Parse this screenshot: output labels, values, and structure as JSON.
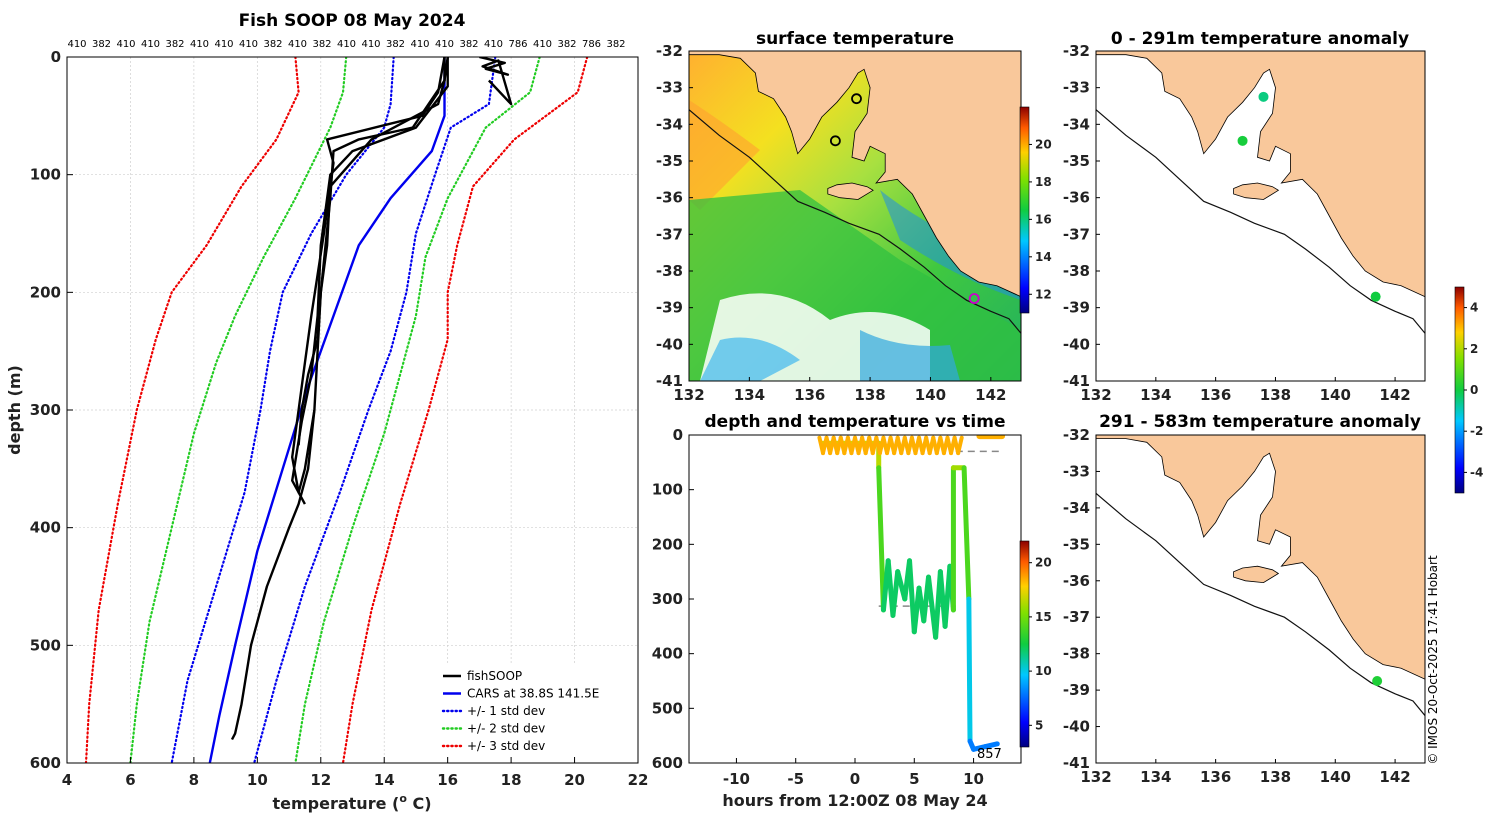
{
  "chart_data": [
    {
      "type": "line",
      "title": "Fish SOOP 08 May 2024",
      "xlabel_main": "temperature (",
      "xlabel_sup": "o",
      "xlabel_end": " C)",
      "ylabel": "depth (m)",
      "xlim": [
        4,
        22
      ],
      "ylim": [
        600,
        0
      ],
      "xticks": [
        4,
        6,
        8,
        10,
        12,
        14,
        16,
        18,
        20,
        22
      ],
      "yticks": [
        0,
        100,
        200,
        300,
        400,
        500,
        600
      ],
      "top_labels": [
        "410",
        "382",
        "410",
        "410",
        "382",
        "410",
        "410",
        "410",
        "382",
        "410",
        "382",
        "410",
        "410",
        "382",
        "410",
        "410",
        "382",
        "410",
        "786",
        "410",
        "382",
        "786",
        "382"
      ],
      "legend": [
        {
          "label": "fishSOOP",
          "color": "#000000",
          "style": "solid"
        },
        {
          "label": "CARS at 38.8S 141.5E",
          "color": "#0000ee",
          "style": "solid"
        },
        {
          "label": "+/- 1 std dev",
          "color": "#0000ee",
          "style": "dotted"
        },
        {
          "label": "+/- 2 std dev",
          "color": "#22cc22",
          "style": "dotted"
        },
        {
          "label": "+/- 3 std dev",
          "color": "#ee0000",
          "style": "dotted"
        }
      ],
      "series": [
        {
          "name": "CARS mean",
          "color": "#0000ee",
          "style": "solid",
          "x": [
            15.9,
            15.9,
            15.5,
            14.2,
            13.2,
            12.4,
            11.6,
            10.8,
            10.0,
            9.3,
            8.8,
            8.5
          ],
          "y": [
            0,
            50,
            80,
            120,
            160,
            220,
            280,
            350,
            420,
            500,
            560,
            600
          ]
        },
        {
          "name": "+1 std",
          "color": "#0000ee",
          "style": "dotted",
          "x": [
            17.5,
            17.3,
            16.1,
            15.6,
            15.0,
            14.7,
            14.2,
            13.5,
            12.6,
            11.5,
            10.6,
            9.9
          ],
          "y": [
            0,
            40,
            60,
            100,
            150,
            200,
            250,
            300,
            370,
            450,
            530,
            600
          ]
        },
        {
          "name": "-1 std",
          "color": "#0000ee",
          "style": "dotted",
          "x": [
            14.3,
            14.2,
            14.0,
            12.8,
            11.7,
            10.8,
            10.4,
            10.1,
            9.6,
            8.7,
            7.8,
            7.3
          ],
          "y": [
            0,
            40,
            60,
            100,
            150,
            200,
            250,
            300,
            370,
            450,
            530,
            600
          ]
        },
        {
          "name": "+2 std",
          "color": "#22cc22",
          "style": "dotted",
          "x": [
            18.9,
            18.6,
            17.2,
            16.0,
            15.3,
            15.0,
            14.6,
            14.0,
            13.0,
            12.1,
            11.5,
            11.2
          ],
          "y": [
            0,
            30,
            60,
            120,
            170,
            220,
            260,
            320,
            400,
            480,
            550,
            600
          ]
        },
        {
          "name": "-2 std",
          "color": "#22cc22",
          "style": "dotted",
          "x": [
            12.8,
            12.7,
            12.3,
            11.2,
            10.2,
            9.3,
            8.7,
            8.0,
            7.3,
            6.6,
            6.2,
            6.0
          ],
          "y": [
            0,
            30,
            60,
            120,
            170,
            220,
            260,
            320,
            400,
            480,
            550,
            600
          ]
        },
        {
          "name": "+3 std",
          "color": "#ee0000",
          "style": "dotted",
          "x": [
            20.4,
            20.1,
            18.1,
            16.8,
            16.3,
            16.0,
            16.0,
            15.4,
            14.5,
            13.6,
            13.0,
            12.7
          ],
          "y": [
            0,
            30,
            70,
            110,
            160,
            200,
            240,
            300,
            380,
            470,
            550,
            600
          ]
        },
        {
          "name": "-3 std",
          "color": "#ee0000",
          "style": "dotted",
          "x": [
            11.2,
            11.3,
            10.6,
            9.5,
            8.4,
            7.3,
            6.8,
            6.2,
            5.6,
            5.0,
            4.7,
            4.6
          ],
          "y": [
            0,
            30,
            70,
            110,
            160,
            200,
            240,
            300,
            380,
            470,
            550,
            600
          ]
        },
        {
          "name": "fishSOOP profile 1",
          "color": "#000000",
          "style": "solid",
          "x": [
            15.9,
            15.9,
            15.4,
            14.9,
            13.2,
            12.4,
            12.3,
            12.0,
            11.9,
            11.8,
            11.6,
            11.3,
            11.0,
            10.3,
            9.8,
            9.5,
            9.3,
            9.2
          ],
          "y": [
            0,
            20,
            40,
            60,
            70,
            80,
            120,
            200,
            250,
            300,
            350,
            380,
            400,
            450,
            500,
            550,
            575,
            580
          ]
        },
        {
          "name": "fishSOOP profile 2",
          "color": "#000000",
          "style": "solid",
          "x": [
            15.9,
            15.7,
            15.2,
            12.2,
            12.4,
            12.1,
            11.7,
            11.5,
            11.3,
            11.1,
            11.3,
            11.5,
            11.8
          ],
          "y": [
            0,
            30,
            50,
            70,
            90,
            150,
            220,
            260,
            300,
            340,
            370,
            350,
            300
          ]
        },
        {
          "name": "fishSOOP profile 3",
          "color": "#000000",
          "style": "solid",
          "x": [
            16.0,
            16.0,
            15.0,
            13.0,
            12.3,
            12.0,
            11.9,
            11.7,
            11.4,
            11.1,
            11.5
          ],
          "y": [
            0,
            25,
            60,
            80,
            100,
            160,
            220,
            270,
            310,
            360,
            380
          ]
        },
        {
          "name": "fishSOOP profile 4",
          "color": "#000000",
          "style": "solid",
          "x": [
            16.0,
            15.9,
            15.7,
            13.6,
            12.3,
            12.2,
            12.0,
            11.9,
            11.6,
            11.4,
            11.3
          ],
          "y": [
            0,
            20,
            40,
            70,
            110,
            160,
            200,
            240,
            270,
            300,
            330
          ]
        },
        {
          "name": "fishSOOP surface",
          "color": "#000000",
          "style": "solid",
          "x": [
            17.0,
            17.8,
            17.2,
            17.9,
            17.1,
            17.6,
            18.0,
            17.3
          ],
          "y": [
            0,
            5,
            10,
            15,
            8,
            3,
            40,
            20
          ]
        }
      ]
    },
    {
      "type": "heatmap",
      "title": "surface temperature",
      "xlim": [
        132,
        143
      ],
      "ylim": [
        -41,
        -32
      ],
      "xticks": [
        132,
        134,
        136,
        138,
        140,
        142
      ],
      "yticks": [
        -32,
        -33,
        -34,
        -35,
        -36,
        -37,
        -38,
        -39,
        -40,
        -41
      ],
      "colorbar_ticks": [
        12,
        14,
        16,
        18,
        20
      ],
      "colorbar_range": [
        11,
        22
      ],
      "markers": [
        {
          "lon": 137.55,
          "lat": -33.3,
          "color": "#000000"
        },
        {
          "lon": 136.85,
          "lat": -34.45,
          "color": "#000000"
        },
        {
          "lon": 141.45,
          "lat": -38.75,
          "color": "#cc00cc"
        }
      ]
    },
    {
      "type": "scatter",
      "title": "depth and temperature vs time",
      "xlabel": "hours from 12:00Z 08 May 24",
      "xlim": [
        -14,
        14
      ],
      "ylim": [
        600,
        0
      ],
      "xticks": [
        -10,
        -5,
        0,
        5,
        10
      ],
      "yticks": [
        0,
        100,
        200,
        300,
        400,
        500,
        600
      ],
      "annotation": "857",
      "colorbar_ticks": [
        5,
        10,
        15,
        20
      ],
      "colorbar_range": [
        3,
        22
      ],
      "series": [
        {
          "name": "dive track (temperature coloured)",
          "x": [
            -2.8,
            2.0,
            2.0,
            2.4,
            2.8,
            3.2,
            3.6,
            4.2,
            4.6,
            5.0,
            5.4,
            5.8,
            6.2,
            6.8,
            7.2,
            7.6,
            8.0,
            8.3,
            8.3,
            9.2,
            9.6,
            9.7,
            10.0,
            11.0,
            12.0
          ],
          "y": [
            15,
            15,
            60,
            320,
            230,
            330,
            250,
            300,
            230,
            360,
            280,
            340,
            260,
            370,
            250,
            350,
            240,
            320,
            60,
            60,
            300,
            560,
            575,
            570,
            565
          ],
          "temp": [
            17,
            17,
            16,
            12,
            12,
            12,
            12,
            12,
            12,
            12,
            12,
            12,
            12,
            12,
            12,
            12,
            12,
            12,
            16,
            16,
            12,
            8,
            8,
            8,
            8
          ]
        }
      ],
      "dashed_levels": [
        {
          "x": [
            2.0,
            8.5
          ],
          "y": 313
        },
        {
          "x": [
            8.5,
            12.5
          ],
          "y": 30
        }
      ]
    },
    {
      "type": "scatter",
      "title": "0 - 291m temperature anomaly",
      "xlim": [
        132,
        143
      ],
      "ylim": [
        -41,
        -32
      ],
      "xticks": [
        132,
        134,
        136,
        138,
        140,
        142
      ],
      "yticks": [
        -32,
        -33,
        -34,
        -35,
        -36,
        -37,
        -38,
        -39,
        -40,
        -41
      ],
      "points": [
        {
          "lon": 137.6,
          "lat": -33.25,
          "anomaly": -0.5
        },
        {
          "lon": 136.9,
          "lat": -34.45,
          "anomaly": 0.1
        },
        {
          "lon": 141.35,
          "lat": -38.7,
          "anomaly": 0.0
        }
      ]
    },
    {
      "type": "scatter",
      "title": "291 - 583m temperature anomaly",
      "xlim": [
        132,
        143
      ],
      "ylim": [
        -41,
        -32
      ],
      "xticks": [
        132,
        134,
        136,
        138,
        140,
        142
      ],
      "yticks": [
        -32,
        -33,
        -34,
        -35,
        -36,
        -37,
        -38,
        -39,
        -40,
        -41
      ],
      "points": [
        {
          "lon": 141.4,
          "lat": -38.75,
          "anomaly": 0.2
        }
      ]
    }
  ],
  "anomaly_colorbar": {
    "ticks": [
      -4,
      -2,
      0,
      2,
      4
    ],
    "range": [
      -5,
      5
    ]
  },
  "credit": "© IMOS 20-Oct-2025 17:41 Hobart"
}
